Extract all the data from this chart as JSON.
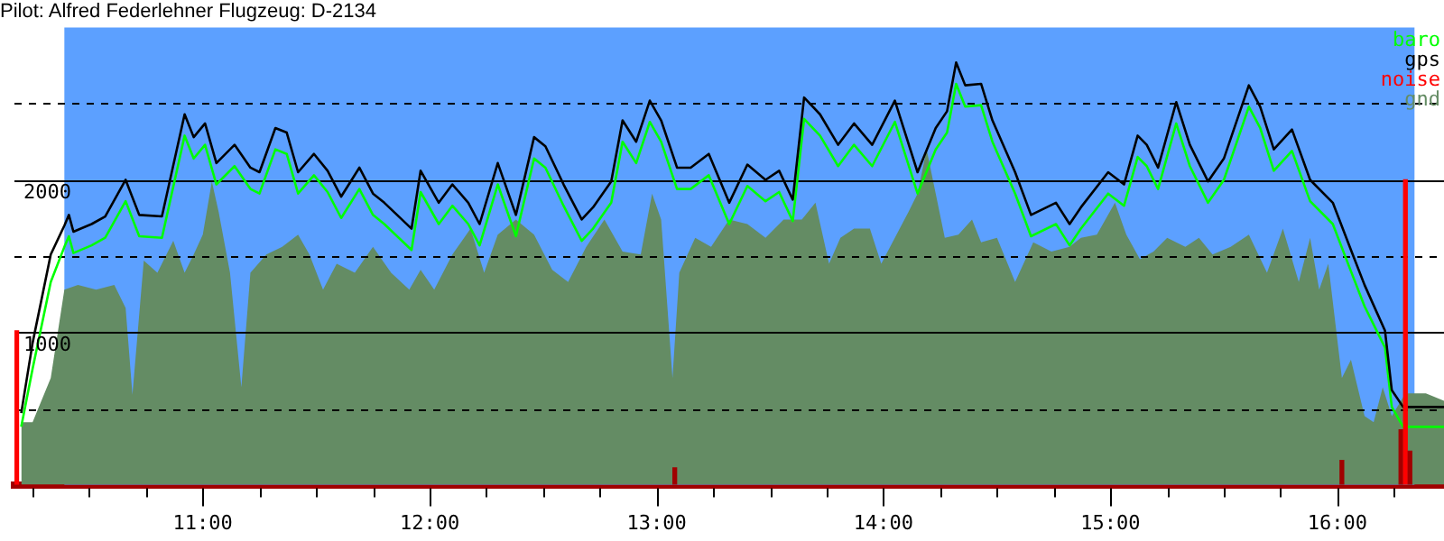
{
  "chart_data": {
    "type": "line",
    "title": "Pilot: Alfred Federlehner Flugzeug: D-2134",
    "xlim": [
      10.17,
      16.47
    ],
    "xticks": [
      {
        "value": 10.25,
        "label": null
      },
      {
        "value": 10.5,
        "label": null
      },
      {
        "value": 10.75,
        "label": null
      },
      {
        "value": 11,
        "label": "11:00"
      },
      {
        "value": 11.25,
        "label": null
      },
      {
        "value": 11.5,
        "label": null
      },
      {
        "value": 11.75,
        "label": null
      },
      {
        "value": 12,
        "label": "12:00"
      },
      {
        "value": 12.25,
        "label": null
      },
      {
        "value": 12.5,
        "label": null
      },
      {
        "value": 12.75,
        "label": null
      },
      {
        "value": 13,
        "label": "13:00"
      },
      {
        "value": 13.25,
        "label": null
      },
      {
        "value": 13.5,
        "label": null
      },
      {
        "value": 13.75,
        "label": null
      },
      {
        "value": 14,
        "label": "14:00"
      },
      {
        "value": 14.25,
        "label": null
      },
      {
        "value": 14.5,
        "label": null
      },
      {
        "value": 14.75,
        "label": null
      },
      {
        "value": 15,
        "label": "15:00"
      },
      {
        "value": 15.25,
        "label": null
      },
      {
        "value": 15.5,
        "label": null
      },
      {
        "value": 15.75,
        "label": null
      },
      {
        "value": 16,
        "label": "16:00"
      },
      {
        "value": 16.25,
        "label": null
      }
    ],
    "ylim": [
      0,
      3000
    ],
    "yticks": [
      {
        "value": 500,
        "label": null
      },
      1000,
      {
        "value": 1500,
        "label": null
      },
      2000,
      {
        "value": 2500,
        "label": null
      }
    ],
    "grid": "y",
    "legend": "top right",
    "bands": [
      {
        "axis": "x",
        "from": 10.39,
        "to": 16.34,
        "color": "#5ca0ff"
      }
    ],
    "series": [
      {
        "name": "baro",
        "color": "#00ff00",
        "x": [
          10.2,
          10.25,
          10.33,
          10.39,
          10.41,
          10.43,
          10.51,
          10.57,
          10.66,
          10.72,
          10.82,
          10.92,
          10.96,
          11.01,
          11.06,
          11.14,
          11.21,
          11.25,
          11.32,
          11.37,
          11.42,
          11.49,
          11.55,
          11.61,
          11.69,
          11.75,
          11.8,
          11.92,
          11.96,
          12.04,
          12.1,
          12.17,
          12.22,
          12.3,
          12.38,
          12.46,
          12.51,
          12.59,
          12.67,
          12.72,
          12.8,
          12.85,
          12.91,
          12.97,
          13.02,
          13.09,
          13.15,
          13.23,
          13.32,
          13.4,
          13.48,
          13.54,
          13.6,
          13.65,
          13.72,
          13.8,
          13.87,
          13.95,
          14.05,
          14.15,
          14.23,
          14.28,
          14.32,
          14.36,
          14.43,
          14.48,
          14.58,
          14.65,
          14.76,
          14.82,
          14.87,
          14.99,
          15.06,
          15.12,
          15.16,
          15.21,
          15.29,
          15.35,
          15.43,
          15.5,
          15.61,
          15.66,
          15.72,
          15.8,
          15.88,
          15.98,
          16.06,
          16.12,
          16.21,
          16.24,
          16.29,
          16.47
        ],
        "values": [
          380,
          760,
          1330,
          1560,
          1630,
          1520,
          1570,
          1620,
          1860,
          1630,
          1620,
          2290,
          2140,
          2230,
          1970,
          2090,
          1940,
          1910,
          2200,
          2170,
          1910,
          2030,
          1920,
          1750,
          1940,
          1770,
          1710,
          1540,
          1920,
          1710,
          1830,
          1710,
          1570,
          1970,
          1630,
          2140,
          2080,
          1830,
          1600,
          1680,
          1850,
          2250,
          2110,
          2380,
          2250,
          1940,
          1940,
          2030,
          1710,
          1960,
          1860,
          1920,
          1730,
          2400,
          2290,
          2090,
          2230,
          2090,
          2380,
          1910,
          2200,
          2310,
          2630,
          2480,
          2490,
          2250,
          1910,
          1630,
          1710,
          1570,
          1680,
          1910,
          1830,
          2150,
          2090,
          1940,
          2370,
          2090,
          1850,
          2000,
          2480,
          2340,
          2060,
          2190,
          1860,
          1710,
          1400,
          1170,
          900,
          510,
          380,
          380
        ]
      },
      {
        "name": "gps",
        "color": "#000000",
        "x": [
          10.2,
          10.25,
          10.33,
          10.39,
          10.41,
          10.43,
          10.51,
          10.57,
          10.66,
          10.72,
          10.82,
          10.92,
          10.96,
          11.01,
          11.06,
          11.14,
          11.21,
          11.25,
          11.32,
          11.37,
          11.42,
          11.49,
          11.55,
          11.61,
          11.69,
          11.75,
          11.8,
          11.92,
          11.96,
          12.04,
          12.1,
          12.17,
          12.22,
          12.3,
          12.38,
          12.46,
          12.51,
          12.59,
          12.67,
          12.72,
          12.8,
          12.85,
          12.91,
          12.97,
          13.02,
          13.09,
          13.15,
          13.23,
          13.32,
          13.4,
          13.48,
          13.54,
          13.6,
          13.65,
          13.72,
          13.8,
          13.87,
          13.95,
          14.05,
          14.15,
          14.23,
          14.28,
          14.32,
          14.36,
          14.43,
          14.48,
          14.58,
          14.65,
          14.76,
          14.82,
          14.87,
          14.99,
          15.06,
          15.12,
          15.16,
          15.21,
          15.29,
          15.35,
          15.43,
          15.5,
          15.61,
          15.66,
          15.72,
          15.8,
          15.88,
          15.98,
          16.06,
          16.12,
          16.21,
          16.24,
          16.29,
          16.47
        ],
        "values": [
          470,
          930,
          1510,
          1700,
          1770,
          1660,
          1710,
          1760,
          2000,
          1770,
          1760,
          2430,
          2280,
          2370,
          2110,
          2230,
          2080,
          2050,
          2340,
          2310,
          2050,
          2170,
          2060,
          1890,
          2080,
          1910,
          1850,
          1680,
          2060,
          1850,
          1970,
          1850,
          1710,
          2110,
          1770,
          2280,
          2220,
          1970,
          1740,
          1820,
          1990,
          2390,
          2250,
          2520,
          2390,
          2080,
          2080,
          2170,
          1850,
          2100,
          2000,
          2060,
          1870,
          2540,
          2430,
          2230,
          2370,
          2230,
          2520,
          2050,
          2340,
          2450,
          2770,
          2620,
          2630,
          2390,
          2050,
          1770,
          1850,
          1710,
          1820,
          2050,
          1970,
          2290,
          2230,
          2080,
          2510,
          2230,
          1990,
          2140,
          2620,
          2480,
          2200,
          2330,
          2000,
          1850,
          1540,
          1310,
          1010,
          620,
          510,
          510
        ]
      },
      {
        "name": "noise",
        "type": "bar",
        "color": "#ff0000",
        "colors": [
          "#ff0000",
          "#a00000",
          "#a00000",
          "#a00000",
          "#ff0000",
          "#a00000"
        ],
        "x": [
          10.18,
          13.08,
          16.02,
          16.28,
          16.3,
          16.32
        ],
        "values": [
          1010,
          110,
          160,
          360,
          2000,
          220
        ]
      },
      {
        "name": "gnd",
        "type": "area",
        "color": "#648c64",
        "x": [
          10.2,
          10.25,
          10.33,
          10.39,
          10.45,
          10.53,
          10.61,
          10.66,
          10.69,
          10.74,
          10.8,
          10.87,
          10.92,
          10.96,
          11,
          11.04,
          11.07,
          11.12,
          11.17,
          11.21,
          11.28,
          11.35,
          11.42,
          11.47,
          11.53,
          11.59,
          11.67,
          11.75,
          11.83,
          11.91,
          11.96,
          12.02,
          12.1,
          12.18,
          12.24,
          12.3,
          12.38,
          12.46,
          12.54,
          12.61,
          12.69,
          12.77,
          12.85,
          12.93,
          12.98,
          13.02,
          13.07,
          13.1,
          13.17,
          13.24,
          13.32,
          13.4,
          13.48,
          13.56,
          13.64,
          13.7,
          13.76,
          13.81,
          13.87,
          13.94,
          13.99,
          14.05,
          14.11,
          14.15,
          14.19,
          14.23,
          14.27,
          14.33,
          14.39,
          14.43,
          14.5,
          14.58,
          14.66,
          14.74,
          14.82,
          14.87,
          14.94,
          15.02,
          15.07,
          15.13,
          15.19,
          15.25,
          15.33,
          15.39,
          15.45,
          15.53,
          15.61,
          15.69,
          15.76,
          15.83,
          15.88,
          15.92,
          15.96,
          16.02,
          16.06,
          16.12,
          16.16,
          16.2,
          16.24,
          16.3,
          16.39,
          16.47
        ],
        "values": [
          410,
          410,
          700,
          1280,
          1310,
          1280,
          1310,
          1160,
          590,
          1470,
          1390,
          1600,
          1390,
          1510,
          1640,
          1990,
          1790,
          1390,
          640,
          1390,
          1510,
          1560,
          1640,
          1510,
          1280,
          1450,
          1390,
          1560,
          1390,
          1280,
          1410,
          1280,
          1510,
          1680,
          1390,
          1640,
          1740,
          1640,
          1410,
          1330,
          1560,
          1740,
          1530,
          1510,
          1910,
          1740,
          700,
          1390,
          1620,
          1560,
          1740,
          1710,
          1620,
          1740,
          1740,
          1850,
          1450,
          1620,
          1680,
          1680,
          1450,
          1620,
          1790,
          1910,
          2200,
          1910,
          1620,
          1640,
          1740,
          1590,
          1620,
          1330,
          1590,
          1530,
          1560,
          1620,
          1640,
          1850,
          1640,
          1480,
          1530,
          1620,
          1560,
          1620,
          1510,
          1560,
          1640,
          1390,
          1680,
          1330,
          1620,
          1280,
          1450,
          700,
          820,
          450,
          410,
          640,
          450,
          600,
          600,
          550
        ]
      }
    ]
  }
}
